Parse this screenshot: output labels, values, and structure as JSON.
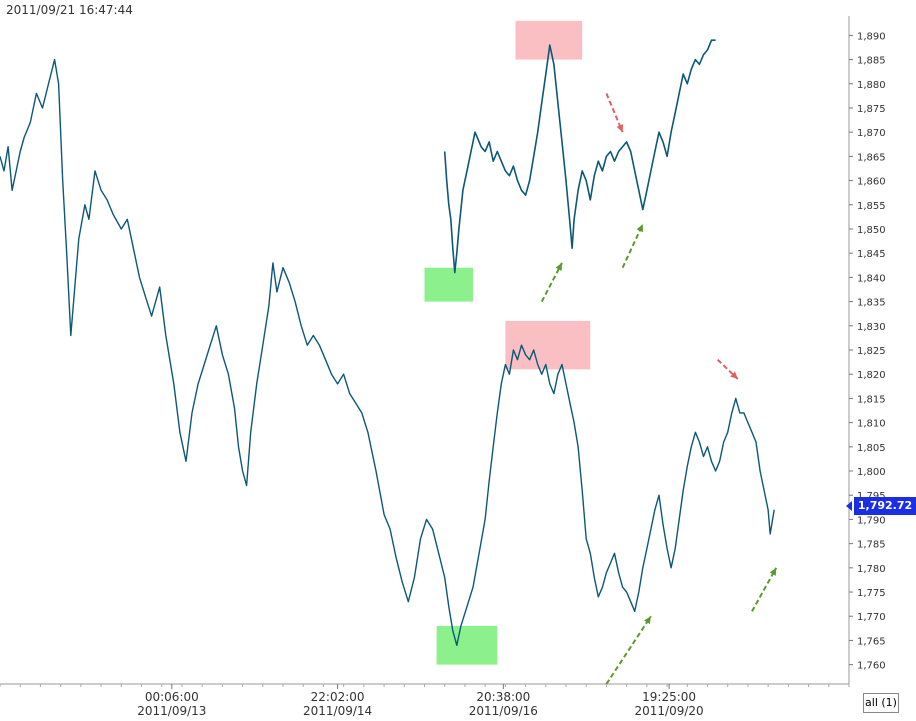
{
  "header": {
    "timestamp": "2011/09/21 16:47:44"
  },
  "price_tag": "1,792.72",
  "all_button": "all (1)",
  "chart_data": [
    {
      "type": "line",
      "series_color": "#0b5878",
      "ylim": [
        1756,
        1894
      ],
      "y_ticks": [
        "1,760",
        "1,765",
        "1,770",
        "1,775",
        "1,780",
        "1,785",
        "1,790",
        "1,795",
        "1,800",
        "1,805",
        "1,810",
        "1,815",
        "1,820",
        "1,825",
        "1,830",
        "1,835",
        "1,840",
        "1,845",
        "1,850",
        "1,855",
        "1,860",
        "1,865",
        "1,870",
        "1,875",
        "1,880",
        "1,885",
        "1,890"
      ],
      "x_ticks": [
        {
          "time": "00:06:00",
          "date": "2011/09/13"
        },
        {
          "time": "22:02:00",
          "date": "2011/09/14"
        },
        {
          "time": "20:38:00",
          "date": "2011/09/16"
        },
        {
          "time": "19:25:00",
          "date": "2011/09/20"
        }
      ],
      "last_price": 1792.72,
      "main_series": [
        [
          0,
          1865
        ],
        [
          2,
          1862
        ],
        [
          4,
          1867
        ],
        [
          6,
          1858
        ],
        [
          8,
          1862
        ],
        [
          10,
          1866
        ],
        [
          12,
          1869
        ],
        [
          15,
          1872
        ],
        [
          18,
          1878
        ],
        [
          21,
          1875
        ],
        [
          24,
          1880
        ],
        [
          27,
          1885
        ],
        [
          29,
          1880
        ],
        [
          31,
          1860
        ],
        [
          33,
          1845
        ],
        [
          35,
          1828
        ],
        [
          37,
          1838
        ],
        [
          39,
          1848
        ],
        [
          42,
          1855
        ],
        [
          44,
          1852
        ],
        [
          47,
          1862
        ],
        [
          50,
          1858
        ],
        [
          53,
          1856
        ],
        [
          56,
          1853
        ],
        [
          60,
          1850
        ],
        [
          63,
          1852
        ],
        [
          66,
          1846
        ],
        [
          69,
          1840
        ],
        [
          72,
          1836
        ],
        [
          75,
          1832
        ],
        [
          79,
          1838
        ],
        [
          82,
          1828
        ],
        [
          86,
          1818
        ],
        [
          89,
          1808
        ],
        [
          92,
          1802
        ],
        [
          95,
          1812
        ],
        [
          98,
          1818
        ],
        [
          101,
          1822
        ],
        [
          104,
          1826
        ],
        [
          107,
          1830
        ],
        [
          110,
          1824
        ],
        [
          113,
          1820
        ],
        [
          116,
          1813
        ],
        [
          118,
          1805
        ],
        [
          120,
          1800
        ],
        [
          122,
          1797
        ],
        [
          124,
          1808
        ],
        [
          127,
          1818
        ],
        [
          130,
          1826
        ],
        [
          133,
          1834
        ],
        [
          135,
          1843
        ],
        [
          137,
          1837
        ],
        [
          140,
          1842
        ],
        [
          143,
          1839
        ],
        [
          146,
          1835
        ],
        [
          149,
          1830
        ],
        [
          152,
          1826
        ],
        [
          155,
          1828
        ],
        [
          158,
          1826
        ],
        [
          161,
          1823
        ],
        [
          164,
          1820
        ],
        [
          167,
          1818
        ],
        [
          170,
          1820
        ],
        [
          173,
          1816
        ],
        [
          176,
          1814
        ],
        [
          179,
          1812
        ],
        [
          182,
          1808
        ],
        [
          186,
          1800
        ],
        [
          190,
          1791
        ],
        [
          193,
          1788
        ],
        [
          196,
          1782
        ],
        [
          199,
          1777
        ],
        [
          202,
          1773
        ],
        [
          205,
          1778
        ],
        [
          208,
          1786
        ],
        [
          211,
          1790
        ],
        [
          214,
          1788
        ],
        [
          217,
          1783
        ],
        [
          220,
          1778
        ],
        [
          222,
          1772
        ],
        [
          224,
          1767
        ],
        [
          226,
          1764
        ],
        [
          228,
          1768
        ],
        [
          231,
          1772
        ],
        [
          234,
          1776
        ],
        [
          237,
          1783
        ],
        [
          240,
          1790
        ],
        [
          242,
          1798
        ],
        [
          244,
          1805
        ],
        [
          246,
          1812
        ],
        [
          248,
          1818
        ],
        [
          250,
          1822
        ],
        [
          252,
          1820
        ],
        [
          254,
          1825
        ],
        [
          256,
          1823
        ],
        [
          258,
          1826
        ],
        [
          260,
          1824
        ],
        [
          262,
          1823
        ],
        [
          264,
          1825
        ],
        [
          266,
          1822
        ],
        [
          268,
          1820
        ],
        [
          270,
          1822
        ],
        [
          272,
          1818
        ],
        [
          274,
          1816
        ],
        [
          276,
          1820
        ],
        [
          278,
          1822
        ],
        [
          280,
          1818
        ],
        [
          282,
          1814
        ],
        [
          284,
          1810
        ],
        [
          286,
          1805
        ],
        [
          288,
          1796
        ],
        [
          290,
          1786
        ],
        [
          292,
          1783
        ],
        [
          294,
          1778
        ],
        [
          296,
          1774
        ],
        [
          298,
          1776
        ],
        [
          300,
          1779
        ],
        [
          302,
          1781
        ],
        [
          304,
          1783
        ],
        [
          306,
          1779
        ],
        [
          308,
          1776
        ],
        [
          310,
          1775
        ],
        [
          312,
          1773
        ],
        [
          314,
          1771
        ],
        [
          316,
          1775
        ],
        [
          318,
          1780
        ],
        [
          320,
          1784
        ],
        [
          322,
          1788
        ],
        [
          324,
          1792
        ],
        [
          326,
          1795
        ],
        [
          328,
          1789
        ],
        [
          330,
          1784
        ],
        [
          332,
          1780
        ],
        [
          334,
          1784
        ],
        [
          336,
          1790
        ],
        [
          338,
          1796
        ],
        [
          340,
          1801
        ],
        [
          342,
          1805
        ],
        [
          344,
          1808
        ],
        [
          346,
          1806
        ],
        [
          348,
          1803
        ],
        [
          350,
          1805
        ],
        [
          352,
          1802
        ],
        [
          354,
          1800
        ],
        [
          356,
          1802
        ],
        [
          358,
          1806
        ],
        [
          360,
          1808
        ],
        [
          362,
          1812
        ],
        [
          364,
          1815
        ],
        [
          366,
          1812
        ],
        [
          368,
          1812
        ],
        [
          370,
          1810
        ],
        [
          372,
          1808
        ],
        [
          374,
          1806
        ],
        [
          376,
          1800
        ],
        [
          378,
          1796
        ],
        [
          380,
          1792
        ],
        [
          381,
          1787
        ],
        [
          383,
          1792
        ]
      ],
      "inset_series": [
        [
          220,
          1866
        ],
        [
          221,
          1860
        ],
        [
          222,
          1855
        ],
        [
          223,
          1852
        ],
        [
          224,
          1846
        ],
        [
          225,
          1841
        ],
        [
          226,
          1845
        ],
        [
          227,
          1850
        ],
        [
          228,
          1854
        ],
        [
          229,
          1858
        ],
        [
          230,
          1860
        ],
        [
          231,
          1862
        ],
        [
          232,
          1864
        ],
        [
          233,
          1866
        ],
        [
          234,
          1868
        ],
        [
          235,
          1870
        ],
        [
          236,
          1869
        ],
        [
          238,
          1867
        ],
        [
          240,
          1866
        ],
        [
          242,
          1868
        ],
        [
          244,
          1864
        ],
        [
          246,
          1866
        ],
        [
          248,
          1864
        ],
        [
          250,
          1862
        ],
        [
          252,
          1861
        ],
        [
          254,
          1863
        ],
        [
          256,
          1860
        ],
        [
          258,
          1858
        ],
        [
          260,
          1857
        ],
        [
          262,
          1860
        ],
        [
          264,
          1865
        ],
        [
          266,
          1870
        ],
        [
          268,
          1876
        ],
        [
          270,
          1882
        ],
        [
          272,
          1888
        ],
        [
          274,
          1884
        ],
        [
          276,
          1876
        ],
        [
          278,
          1868
        ],
        [
          280,
          1860
        ],
        [
          282,
          1851
        ],
        [
          283,
          1846
        ],
        [
          284,
          1852
        ],
        [
          286,
          1858
        ],
        [
          288,
          1862
        ],
        [
          290,
          1860
        ],
        [
          292,
          1856
        ],
        [
          294,
          1861
        ],
        [
          296,
          1864
        ],
        [
          298,
          1862
        ],
        [
          300,
          1865
        ],
        [
          302,
          1866
        ],
        [
          304,
          1864
        ],
        [
          306,
          1866
        ],
        [
          308,
          1867
        ],
        [
          310,
          1868
        ],
        [
          312,
          1866
        ],
        [
          314,
          1862
        ],
        [
          316,
          1858
        ],
        [
          318,
          1854
        ],
        [
          320,
          1858
        ],
        [
          322,
          1862
        ],
        [
          324,
          1866
        ],
        [
          326,
          1870
        ],
        [
          328,
          1868
        ],
        [
          330,
          1865
        ],
        [
          332,
          1870
        ],
        [
          334,
          1874
        ],
        [
          336,
          1878
        ],
        [
          338,
          1882
        ],
        [
          340,
          1880
        ],
        [
          342,
          1883
        ],
        [
          344,
          1885
        ],
        [
          346,
          1884
        ],
        [
          348,
          1886
        ],
        [
          350,
          1887
        ],
        [
          352,
          1889
        ],
        [
          354,
          1889
        ]
      ],
      "annotations": [
        {
          "kind": "box",
          "color": "#f9b8bc",
          "x": [
            255,
            288
          ],
          "y": [
            1885,
            1893
          ]
        },
        {
          "kind": "box",
          "color": "#f9b8bc",
          "x": [
            250,
            292
          ],
          "y": [
            1821,
            1831
          ]
        },
        {
          "kind": "box",
          "color": "#7ff07f",
          "x": [
            210,
            234
          ],
          "y": [
            1835,
            1842
          ]
        },
        {
          "kind": "box",
          "color": "#7ff07f",
          "x": [
            216,
            246
          ],
          "y": [
            1760,
            1768
          ]
        },
        {
          "kind": "arrow",
          "color": "#e06060",
          "from": [
            300,
            1878
          ],
          "to": [
            308,
            1870
          ]
        },
        {
          "kind": "arrow",
          "color": "#e06060",
          "from": [
            355,
            1823
          ],
          "to": [
            365,
            1819
          ]
        },
        {
          "kind": "arrow",
          "color": "#5a9a2a",
          "from": [
            268,
            1835
          ],
          "to": [
            278,
            1843
          ]
        },
        {
          "kind": "arrow",
          "color": "#5a9a2a",
          "from": [
            308,
            1842
          ],
          "to": [
            318,
            1851
          ]
        },
        {
          "kind": "arrow",
          "color": "#5a9a2a",
          "from": [
            300,
            1756
          ],
          "to": [
            322,
            1770
          ]
        },
        {
          "kind": "arrow",
          "color": "#5a9a2a",
          "from": [
            372,
            1771
          ],
          "to": [
            384,
            1780
          ]
        }
      ]
    }
  ]
}
